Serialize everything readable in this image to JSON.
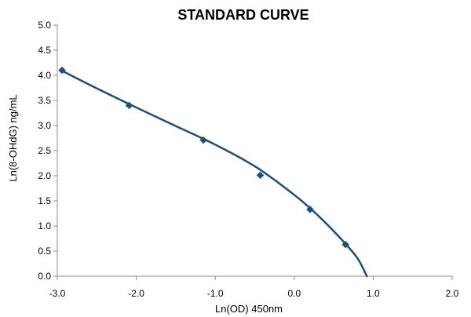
{
  "chart_data": {
    "type": "scatter",
    "title": "STANDARD CURVE",
    "xlabel": "Ln(OD) 450nm",
    "ylabel": "Ln(8-OHdG) ng/mL",
    "xlim": [
      -3.0,
      2.0
    ],
    "ylim": [
      0.0,
      5.0
    ],
    "x_ticks": [
      -3.0,
      -2.0,
      -1.0,
      0.0,
      1.0,
      2.0
    ],
    "y_ticks": [
      0.0,
      0.5,
      1.0,
      1.5,
      2.0,
      2.5,
      3.0,
      3.5,
      4.0,
      4.5,
      5.0
    ],
    "x_tick_labels": [
      "-3.0",
      "-2.0",
      "-1.0",
      "0.0",
      "1.0",
      "2.0"
    ],
    "y_tick_labels": [
      "0.0",
      "0.5",
      "1.0",
      "1.5",
      "2.0",
      "2.5",
      "3.0",
      "3.5",
      "4.0",
      "4.5",
      "5.0"
    ],
    "grid": false,
    "series": [
      {
        "marker": "diamond",
        "color": "#1f4e79",
        "points": [
          {
            "x": -2.94,
            "y": 4.1
          },
          {
            "x": -2.09,
            "y": 3.4
          },
          {
            "x": -1.15,
            "y": 2.71
          },
          {
            "x": -0.43,
            "y": 2.01
          },
          {
            "x": 0.2,
            "y": 1.33
          },
          {
            "x": 0.65,
            "y": 0.63
          }
        ]
      }
    ],
    "trendline": {
      "type": "polynomial",
      "color": "#1f4e79",
      "points": [
        {
          "x": -2.94,
          "y": 4.09
        },
        {
          "x": -2.5,
          "y": 3.74
        },
        {
          "x": -2.0,
          "y": 3.36
        },
        {
          "x": -1.5,
          "y": 2.99
        },
        {
          "x": -1.0,
          "y": 2.62
        },
        {
          "x": -0.5,
          "y": 2.19
        },
        {
          "x": 0.0,
          "y": 1.62
        },
        {
          "x": 0.3,
          "y": 1.21
        },
        {
          "x": 0.6,
          "y": 0.73
        },
        {
          "x": 0.8,
          "y": 0.36
        },
        {
          "x": 0.92,
          "y": 0.0
        }
      ]
    }
  }
}
